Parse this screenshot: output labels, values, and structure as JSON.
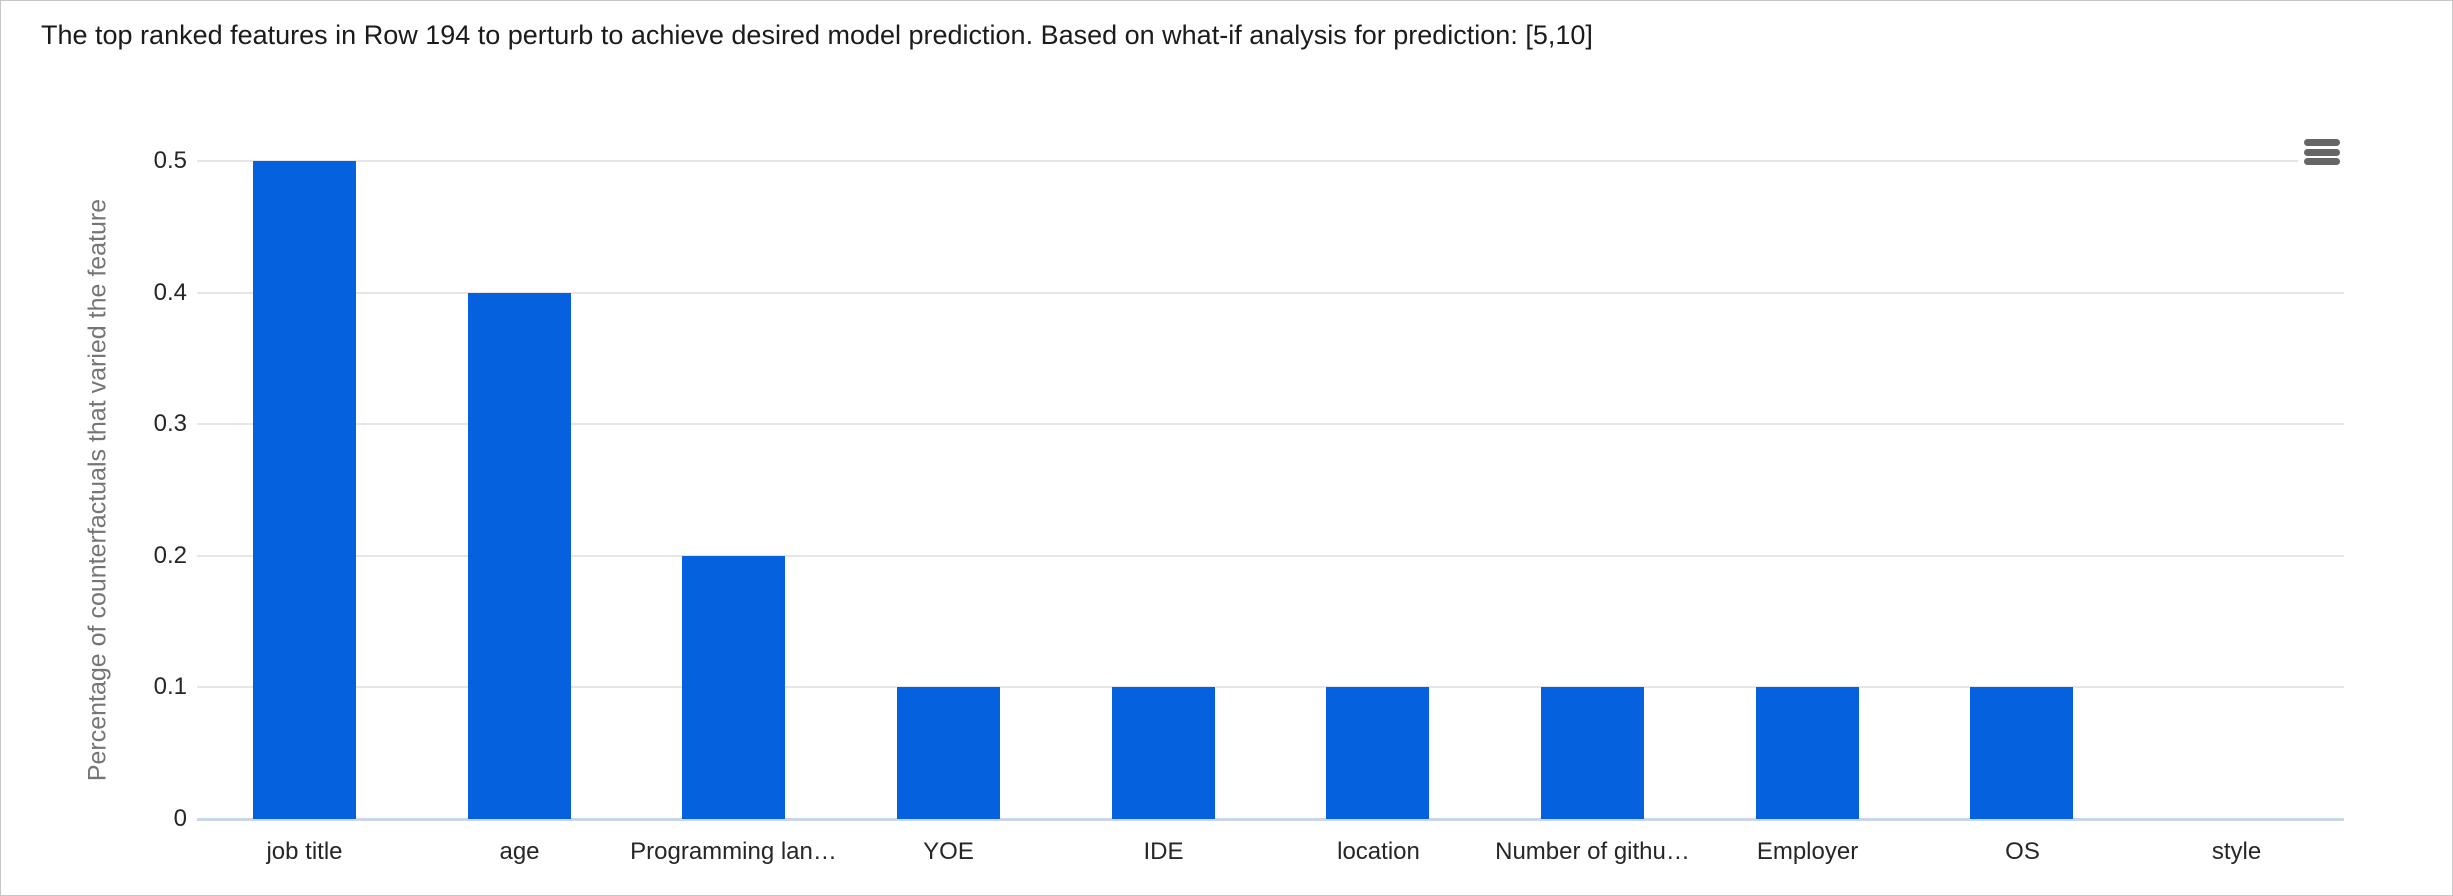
{
  "header": {
    "title": "The top ranked features in Row 194 to perturb to achieve desired model prediction. Based on what-if analysis for prediction: [5,10]"
  },
  "icons": {
    "context_menu": "hamburger-menu-icon"
  },
  "colors": {
    "bar": "#0561de",
    "grid": "#e6e6e6",
    "axis_line": "#ccd6eb",
    "tick_text": "#262626",
    "axis_title_text": "#757575",
    "title_text": "#1b1b1b",
    "menu_icon": "#666666",
    "background": "#ffffff"
  },
  "chart_data": {
    "type": "bar",
    "title": "The top ranked features in Row 194 to perturb to achieve desired model prediction. Based on what-if analysis for prediction: [5,10]",
    "categories": [
      "job title",
      "age",
      "Programming lan…",
      "YOE",
      "IDE",
      "location",
      "Number of githu…",
      "Employer",
      "OS",
      "style"
    ],
    "values": [
      0.5,
      0.4,
      0.2,
      0.1,
      0.1,
      0.1,
      0.1,
      0.1,
      0.1,
      0
    ],
    "xlabel": "",
    "ylabel": "Percentage of counterfactuals that varied the feature",
    "ylim": [
      0,
      0.5
    ],
    "yticks": [
      0,
      0.1,
      0.2,
      0.3,
      0.4,
      0.5
    ],
    "grid": "horizontal gridlines on",
    "legend": "none",
    "bar_width_fraction": 0.48
  }
}
